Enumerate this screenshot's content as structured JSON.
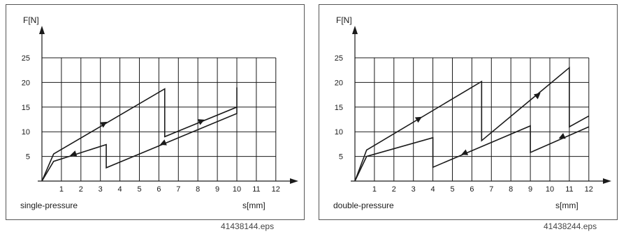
{
  "chart_data": [
    {
      "type": "line",
      "ylabel": "F[N]",
      "xlabel": "s[mm]",
      "caption": "single-pressure",
      "xlim": [
        0,
        12
      ],
      "ylim": [
        0,
        25
      ],
      "x_ticks": [
        1,
        2,
        3,
        4,
        5,
        6,
        7,
        8,
        9,
        10,
        11,
        12
      ],
      "y_ticks": [
        5,
        10,
        15,
        20,
        25
      ],
      "grid": true,
      "series": [
        {
          "points": [
            [
              0,
              0
            ],
            [
              0.6,
              5.5
            ],
            [
              6.3,
              18.7
            ],
            [
              6.3,
              9
            ],
            [
              10,
              15
            ],
            [
              10,
              19
            ]
          ],
          "arrows": [
            {
              "at": [
                3.2,
                11.7
              ],
              "dir": "up-right"
            },
            {
              "at": [
                8.2,
                12.2
              ],
              "dir": "up-right"
            }
          ]
        },
        {
          "points": [
            [
              0,
              0
            ],
            [
              0.6,
              4
            ],
            [
              3.3,
              7.4
            ],
            [
              3.3,
              2.7
            ],
            [
              10,
              13.7
            ],
            [
              10,
              15
            ]
          ],
          "arrows": [
            {
              "at": [
                1.6,
                5.4
              ],
              "dir": "down-left"
            },
            {
              "at": [
                6.2,
                7.6
              ],
              "dir": "down-left"
            }
          ]
        }
      ]
    },
    {
      "type": "line",
      "ylabel": "F[N]",
      "xlabel": "s[mm]",
      "caption": "double-pressure",
      "xlim": [
        0,
        12
      ],
      "ylim": [
        0,
        25
      ],
      "x_ticks": [
        1,
        2,
        3,
        4,
        5,
        6,
        7,
        8,
        9,
        10,
        11,
        12
      ],
      "y_ticks": [
        5,
        10,
        15,
        20,
        25
      ],
      "grid": true,
      "series": [
        {
          "points": [
            [
              0,
              0
            ],
            [
              0.6,
              6.3
            ],
            [
              6.5,
              20.2
            ],
            [
              6.5,
              8.2
            ],
            [
              11,
              23
            ],
            [
              11,
              11
            ],
            [
              12,
              13.2
            ]
          ],
          "arrows": [
            {
              "at": [
                3.3,
                12.7
              ],
              "dir": "up-right"
            },
            {
              "at": [
                9.4,
                17.5
              ],
              "dir": "up-right"
            }
          ]
        },
        {
          "points": [
            [
              0,
              0
            ],
            [
              0.6,
              5
            ],
            [
              4,
              8.8
            ],
            [
              4,
              2.8
            ],
            [
              9,
              11.2
            ],
            [
              9,
              5.8
            ],
            [
              12,
              11
            ]
          ],
          "arrows": [
            {
              "at": [
                5.6,
                5.6
              ],
              "dir": "down-left"
            },
            {
              "at": [
                10.6,
                8.9
              ],
              "dir": "down-left"
            }
          ]
        }
      ]
    }
  ],
  "figure_ids": [
    "41438144.eps",
    "41438244.eps"
  ]
}
